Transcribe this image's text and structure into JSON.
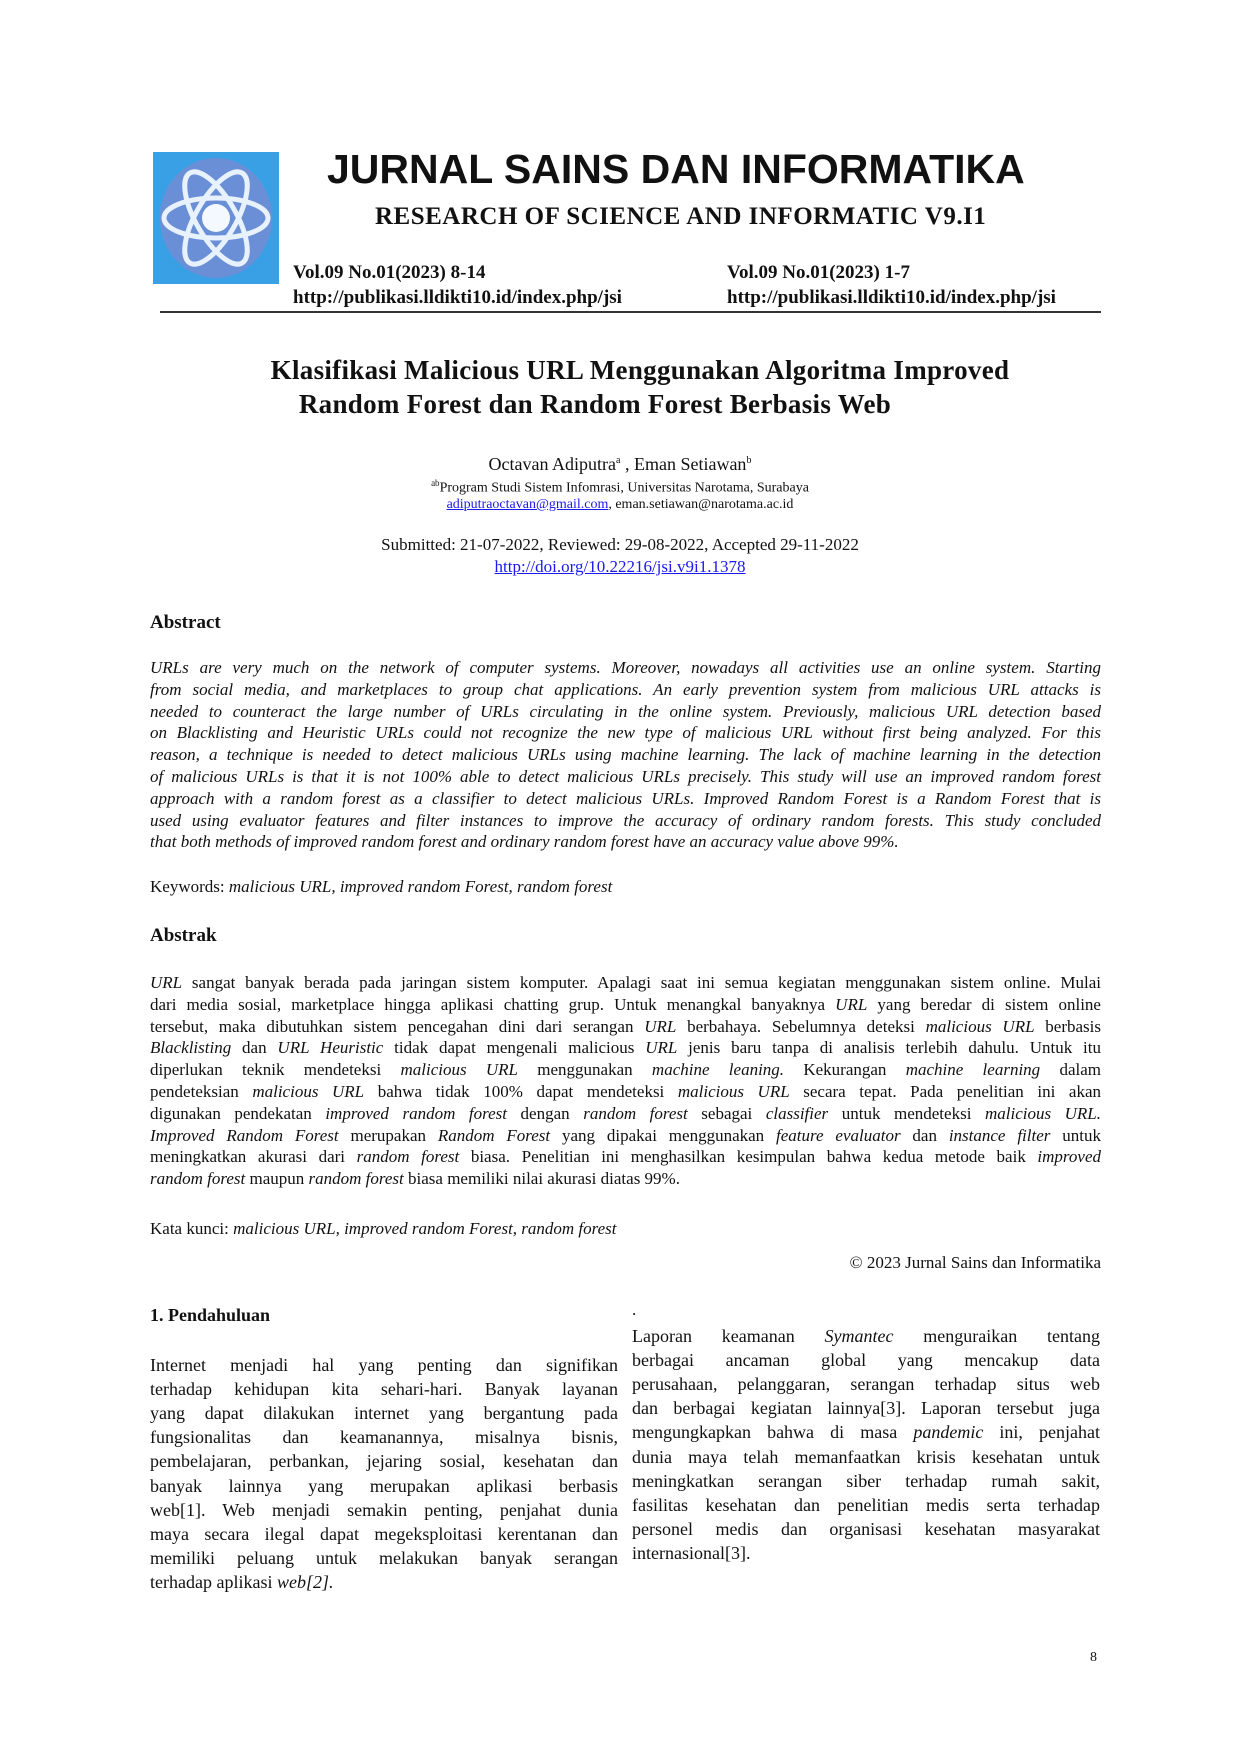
{
  "header": {
    "journal_title": "JURNAL SAINS DAN INFORMATIKA",
    "journal_subtitle": "RESEARCH OF SCIENCE AND INFORMATIC",
    "subtitle_version": "V9.I1",
    "left_vol": "Vol.09 No.01(2023) 8-14",
    "left_url": "http://publikasi.lldikti10.id/index.php/jsi",
    "right_vol": "Vol.09 No.01(2023) 1-7",
    "right_url": "http://publikasi.lldikti10.id/index.php/jsi",
    "logo_colors": {
      "bg": "#3aa0e6",
      "orbit": "#e8f2ff"
    }
  },
  "paper": {
    "title_line1": "Klasifikasi Malicious URL Menggunakan Algoritma Improved",
    "title_line2": "Random Forest dan Random Forest Berbasis Web",
    "author1": "Octavan Adiputra",
    "author1_sup": "a",
    "author_sep": " , ",
    "author2": "Eman Setiawan",
    "author2_sup": "b",
    "affil_sup": "ab",
    "affiliation": "Program Studi Sistem Infomrasi, Universitas Narotama, Surabaya",
    "email1": "adiputraoctavan@gmail.com",
    "email_sep": ", ",
    "email2": "eman.setiawan@narotama.ac.id",
    "dates": "Submitted: 21-07-2022, Reviewed: 29-08-2022, Accepted 29-11-2022",
    "doi": "http://doi.org/10.22216/jsi.v9i1.1378"
  },
  "abstract": {
    "heading": "Abstract",
    "lines": [
      [
        [
          "URLs are very much on the network of computer systems. Moreover, nowadays all activities use an online system. Starting",
          1
        ]
      ],
      [
        [
          "from social media, and marketplaces to group chat applications. An early prevention system from malicious URL attacks is",
          1
        ]
      ],
      [
        [
          "needed to counteract the large number of URLs circulating in the online system. Previously, malicious URL detection based",
          1
        ]
      ],
      [
        [
          "on Blacklisting and Heuristic URLs could not recognize the new type of malicious URL without first being analyzed. For this",
          1
        ]
      ],
      [
        [
          "reason, a technique is needed to detect malicious URLs using machine learning. The lack of machine learning in the detection",
          1
        ]
      ],
      [
        [
          "of malicious URLs is that it is not 100% able to detect malicious URLs precisely. This study will use an improved random forest",
          1
        ]
      ],
      [
        [
          "approach with a random forest as a classifier to detect malicious URLs. Improved Random Forest is a Random Forest that is",
          1
        ]
      ],
      [
        [
          "used using evaluator features and filter instances to improve the accuracy of ordinary random forests. This study concluded",
          1
        ]
      ],
      [
        [
          "that both methods of improved random forest and ordinary random forest have an accuracy value above 99%.",
          1
        ]
      ]
    ],
    "keywords_label": "Keywords: ",
    "keywords": "malicious URL, improved random Forest, random forest"
  },
  "abstrak": {
    "heading": "Abstrak",
    "lines": [
      [
        [
          "URL",
          1
        ],
        [
          " sangat banyak berada pada jaringan sistem komputer. Apalagi saat ini semua kegiatan menggunakan sistem online. Mulai",
          0
        ]
      ],
      [
        [
          "dari media sosial, marketplace hingga aplikasi chatting grup. Untuk menangkal banyaknya ",
          0
        ],
        [
          "URL",
          1
        ],
        [
          " yang beredar di sistem online",
          0
        ]
      ],
      [
        [
          "tersebut,  maka dibutuhkan sistem pencegahan dini dari serangan ",
          0
        ],
        [
          "URL",
          1
        ],
        [
          " berbahaya. Sebelumnya deteksi ",
          0
        ],
        [
          "malicious URL",
          1
        ],
        [
          " berbasis",
          0
        ]
      ],
      [
        [
          "Blacklisting",
          1
        ],
        [
          " dan ",
          0
        ],
        [
          "URL Heuristic",
          1
        ],
        [
          " tidak dapat mengenali malicious ",
          0
        ],
        [
          "URL",
          1
        ],
        [
          " jenis baru tanpa di analisis terlebih dahulu. Untuk itu",
          0
        ]
      ],
      [
        [
          "diperlukan teknik mendeteksi ",
          0
        ],
        [
          "malicious URL",
          1
        ],
        [
          " menggunakan ",
          0
        ],
        [
          "machine leaning.",
          1
        ],
        [
          " Kekurangan ",
          0
        ],
        [
          "machine learning",
          1
        ],
        [
          " dalam",
          0
        ]
      ],
      [
        [
          "pendeteksian ",
          0
        ],
        [
          "malicious URL",
          1
        ],
        [
          " bahwa tidak 100% dapat mendeteksi ",
          0
        ],
        [
          "malicious URL",
          1
        ],
        [
          " secara tepat. Pada penelitian ini akan",
          0
        ]
      ],
      [
        [
          "digunakan pendekatan ",
          0
        ],
        [
          "improved random forest",
          1
        ],
        [
          " dengan ",
          0
        ],
        [
          "random forest",
          1
        ],
        [
          " sebagai ",
          0
        ],
        [
          "classifier",
          1
        ],
        [
          " untuk mendeteksi ",
          0
        ],
        [
          "malicious URL.",
          1
        ]
      ],
      [
        [
          "Improved Random Forest",
          1
        ],
        [
          " merupakan ",
          0
        ],
        [
          "Random Forest",
          1
        ],
        [
          " yang dipakai menggunakan ",
          0
        ],
        [
          "feature evaluator",
          1
        ],
        [
          " dan ",
          0
        ],
        [
          "instance filter",
          1
        ],
        [
          " untuk",
          0
        ]
      ],
      [
        [
          "meningkatkan akurasi dari ",
          0
        ],
        [
          "random forest",
          1
        ],
        [
          " biasa. Penelitian ini menghasilkan kesimpulan bahwa kedua metode baik ",
          0
        ],
        [
          "improved",
          1
        ]
      ],
      [
        [
          "random forest",
          1
        ],
        [
          " maupun ",
          0
        ],
        [
          "random forest",
          1
        ],
        [
          " biasa memiliki nilai akurasi diatas 99%.",
          0
        ]
      ]
    ],
    "keywords_label": "Kata kunci: ",
    "keywords": "malicious URL, improved random Forest, random forest"
  },
  "copyright": "© 2023 Jurnal Sains dan Informatika",
  "section": {
    "heading": "1.  Pendahuluan",
    "left_lines": [
      [
        [
          "Internet menjadi hal yang penting dan signifikan",
          0
        ]
      ],
      [
        [
          "terhadap kehidupan kita sehari-hari. Banyak layanan",
          0
        ]
      ],
      [
        [
          "yang dapat dilakukan internet yang bergantung pada",
          0
        ]
      ],
      [
        [
          "fungsionalitas dan keamanannya, misalnya bisnis,",
          0
        ]
      ],
      [
        [
          "pembelajaran, perbankan, jejaring sosial, kesehatan dan",
          0
        ]
      ],
      [
        [
          "banyak lainnya yang merupakan aplikasi berbasis",
          0
        ]
      ],
      [
        [
          "web[1]. Web menjadi semakin penting, penjahat dunia",
          0
        ]
      ],
      [
        [
          "maya secara ilegal dapat megeksploitasi kerentanan dan",
          0
        ]
      ],
      [
        [
          "memiliki peluang untuk melakukan banyak serangan",
          0
        ]
      ],
      [
        [
          "terhadap aplikasi ",
          0
        ],
        [
          "web[2].",
          1
        ]
      ]
    ],
    "right_dot": ".",
    "right_lines": [
      [
        [
          "Laporan keamanan ",
          0
        ],
        [
          "Symantec",
          1
        ],
        [
          " menguraikan tentang",
          0
        ]
      ],
      [
        [
          "berbagai ancaman global yang mencakup data",
          0
        ]
      ],
      [
        [
          "perusahaan, pelanggaran, serangan terhadap situs web",
          0
        ]
      ],
      [
        [
          "dan berbagai kegiatan lainnya[3]. Laporan tersebut juga",
          0
        ]
      ],
      [
        [
          "mengungkapkan bahwa di masa ",
          0
        ],
        [
          "pandemic",
          1
        ],
        [
          " ini, penjahat",
          0
        ]
      ],
      [
        [
          "dunia maya telah memanfaatkan krisis kesehatan untuk",
          0
        ]
      ],
      [
        [
          "meningkatkan serangan siber terhadap rumah sakit,",
          0
        ]
      ],
      [
        [
          "fasilitas kesehatan dan penelitian medis serta terhadap",
          0
        ]
      ],
      [
        [
          "personel medis dan organisasi kesehatan masyarakat",
          0
        ]
      ],
      [
        [
          "internasional[3].",
          0
        ]
      ]
    ]
  },
  "page_number": "8"
}
